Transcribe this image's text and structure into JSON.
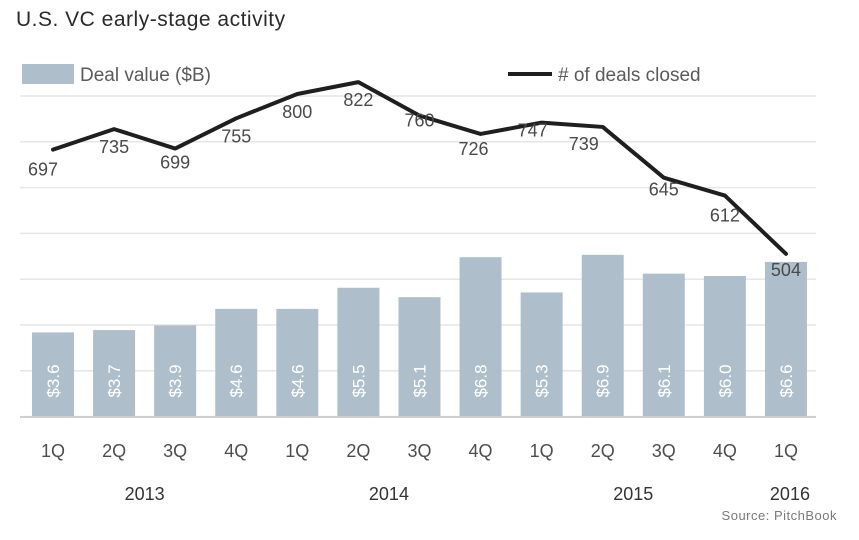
{
  "title": "U.S. VC early-stage activity",
  "source": "Source: PitchBook",
  "legend": {
    "bars": "Deal value ($B)",
    "line": "# of deals closed",
    "placement": "top"
  },
  "colors": {
    "bar": "#aebfcb",
    "line": "#1f1f1f",
    "grid": "#e6e6e6"
  },
  "chart_data": {
    "type": "bar",
    "categories": [
      "1Q",
      "2Q",
      "3Q",
      "4Q",
      "1Q",
      "2Q",
      "3Q",
      "4Q",
      "1Q",
      "2Q",
      "3Q",
      "4Q",
      "1Q"
    ],
    "years": [
      {
        "label": "2013",
        "start": 0,
        "end": 3
      },
      {
        "label": "2014",
        "start": 4,
        "end": 7
      },
      {
        "label": "2015",
        "start": 8,
        "end": 11
      },
      {
        "label": "2016",
        "start": 12,
        "end": 12
      }
    ],
    "series": [
      {
        "name": "Deal value ($B)",
        "type": "bar",
        "values": [
          3.6,
          3.7,
          3.9,
          4.6,
          4.6,
          5.5,
          5.1,
          6.8,
          5.3,
          6.9,
          6.1,
          6.0,
          6.6
        ],
        "labels": [
          "$3.6",
          "$3.7",
          "$3.9",
          "$4.6",
          "$4.6",
          "$5.5",
          "$5.1",
          "$6.8",
          "$5.3",
          "$6.9",
          "$6.1",
          "$6.0",
          "$6.6"
        ]
      },
      {
        "name": "# of deals closed",
        "type": "line",
        "values": [
          697,
          735,
          699,
          755,
          800,
          822,
          760,
          726,
          747,
          739,
          645,
          612,
          504
        ],
        "labels": [
          "697",
          "735",
          "699",
          "755",
          "800",
          "822",
          "760",
          "726",
          "747",
          "739",
          "645",
          "612",
          "504"
        ]
      }
    ],
    "grid": true
  }
}
